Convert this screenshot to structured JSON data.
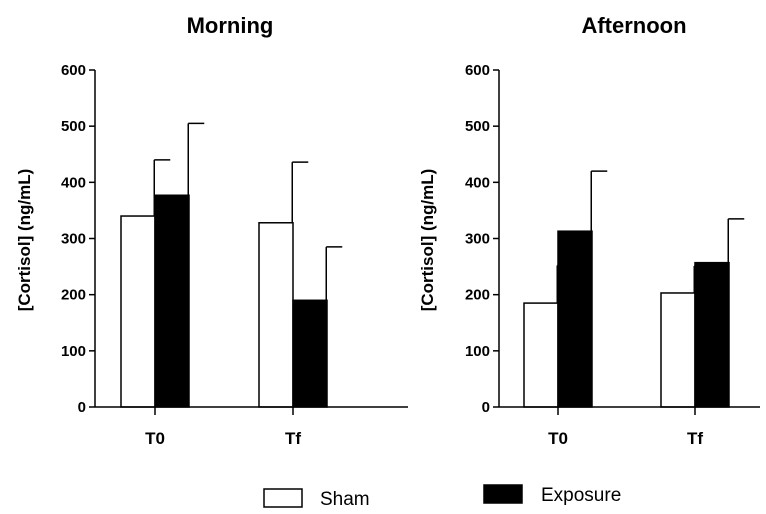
{
  "chart_data": [
    {
      "type": "bar",
      "title": "Morning",
      "ylabel": "[Cortisol] (ng/mL)",
      "xlabel": "",
      "ylim": [
        0,
        600
      ],
      "yticks": [
        0,
        100,
        200,
        300,
        400,
        500,
        600
      ],
      "categories": [
        "T0",
        "Tf"
      ],
      "series": [
        {
          "name": "Sham",
          "values": [
            340,
            328
          ],
          "error": [
            100,
            108
          ]
        },
        {
          "name": "Exposure",
          "values": [
            377,
            190
          ],
          "error": [
            128,
            95
          ]
        }
      ]
    },
    {
      "type": "bar",
      "title": "Afternoon",
      "ylabel": "[Cortisol] (ng/mL)",
      "xlabel": "",
      "ylim": [
        0,
        600
      ],
      "yticks": [
        0,
        100,
        200,
        300,
        400,
        500,
        600
      ],
      "categories": [
        "T0",
        "Tf"
      ],
      "series": [
        {
          "name": "Sham",
          "values": [
            185,
            203
          ],
          "error": [
            67,
            48
          ]
        },
        {
          "name": "Exposure",
          "values": [
            313,
            257
          ],
          "error": [
            107,
            78
          ]
        }
      ]
    }
  ],
  "legend": {
    "position": "bottom",
    "items": [
      {
        "label": "Sham",
        "fill": "#ffffff"
      },
      {
        "label": "Exposure",
        "fill": "#000000"
      }
    ]
  },
  "colors": {
    "sham": "#ffffff",
    "exposure": "#000000",
    "stroke": "#000000"
  }
}
